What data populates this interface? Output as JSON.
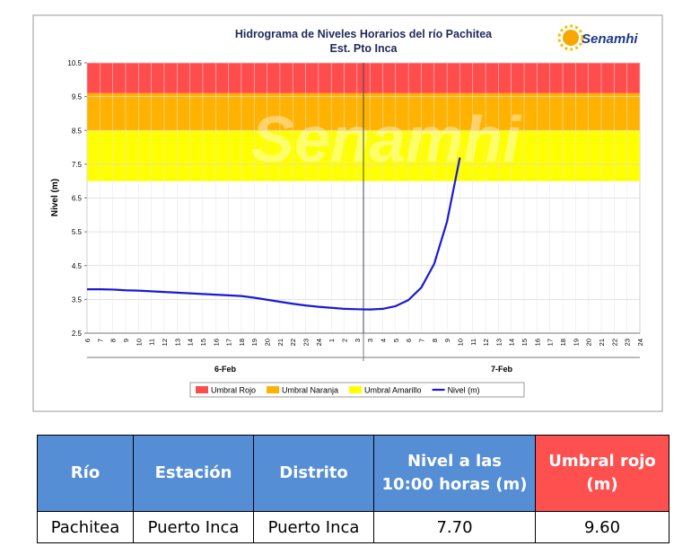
{
  "chart_data": {
    "type": "line",
    "title": "Hidrograma de Niveles Horarios del río Pachitea",
    "subtitle": "Est. Pto Inca",
    "logo_text": "Senamhi",
    "y_label": "Nivel (m)",
    "groups": [
      {
        "label": "6-Feb",
        "categories": [
          "6",
          "7",
          "8",
          "9",
          "10",
          "11",
          "12",
          "13",
          "14",
          "15",
          "16",
          "17",
          "18",
          "19",
          "20",
          "21",
          "22",
          "23",
          "24",
          "1",
          "2",
          "3"
        ]
      },
      {
        "label": "7-Feb",
        "categories": [
          "3",
          "4",
          "5",
          "6",
          "7",
          "8",
          "9",
          "10",
          "11",
          "12",
          "13",
          "14",
          "15",
          "16",
          "17",
          "18",
          "19",
          "20",
          "21",
          "22",
          "23",
          "24"
        ]
      }
    ],
    "ylim": [
      2.5,
      10.5
    ],
    "yticks": [
      2.5,
      3.5,
      4.5,
      5.5,
      6.5,
      7.5,
      8.5,
      9.5,
      10.5
    ],
    "grid": true,
    "bands": [
      {
        "name": "Umbral Rojo",
        "color": "#ff4d4d",
        "lower": 9.6,
        "upper": 10.5
      },
      {
        "name": "Umbral Naranja",
        "color": "#ffb300",
        "lower": 8.5,
        "upper": 9.6
      },
      {
        "name": "Umbral Amarillo",
        "color": "#ffff00",
        "lower": 7.0,
        "upper": 8.5
      }
    ],
    "series": [
      {
        "name": "Nivel (m)",
        "color": "#1a1ad6",
        "values": [
          3.8,
          3.8,
          3.79,
          3.77,
          3.76,
          3.74,
          3.72,
          3.7,
          3.68,
          3.66,
          3.64,
          3.62,
          3.6,
          3.55,
          3.49,
          3.43,
          3.37,
          3.32,
          3.28,
          3.25,
          3.22,
          3.21,
          3.2,
          3.22,
          3.3,
          3.48,
          3.85,
          4.55,
          5.8,
          7.7,
          null,
          null,
          null,
          null,
          null,
          null,
          null,
          null,
          null,
          null,
          null,
          null,
          null,
          null
        ]
      }
    ]
  },
  "table": {
    "headers": [
      "Río",
      "Estación",
      "Distrito",
      "Nivel a las 10:00 horas (m)",
      "Umbral rojo (m)"
    ],
    "rows": [
      [
        "Pachitea",
        "Puerto Inca",
        "Puerto Inca",
        "7.70",
        "9.60"
      ]
    ]
  }
}
